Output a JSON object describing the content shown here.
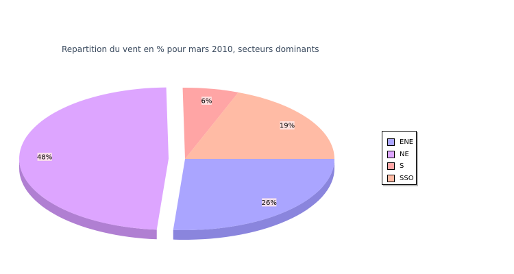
{
  "chart_data": {
    "type": "pie",
    "title": "Repartition du vent en % pour mars 2010, secteurs dominants",
    "slices": [
      {
        "name": "ENE",
        "value": 26,
        "label": "26%",
        "color": "#aaa5ff",
        "side_color": "#8a85dd"
      },
      {
        "name": "NE",
        "value": 48,
        "label": "48%",
        "color": "#dda5ff",
        "side_color": "#b07fd2"
      },
      {
        "name": "S",
        "value": 6,
        "label": "6%",
        "color": "#ffa5a5",
        "side_color": "#d48686"
      },
      {
        "name": "SSO",
        "value": 19,
        "label": "19%",
        "color": "#ffbba5",
        "side_color": "#d69b88"
      }
    ],
    "exploded": [
      "NE"
    ],
    "legend_position": "right"
  }
}
